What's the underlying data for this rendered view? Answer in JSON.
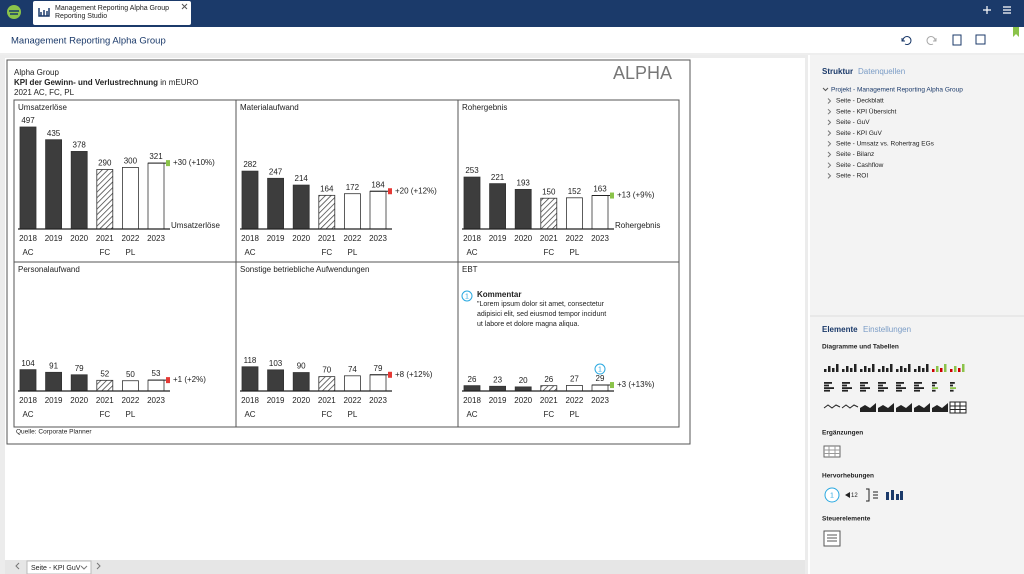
{
  "app": {
    "tab_title": "Management Reporting Alpha Group",
    "tab_subtitle": "Reporting Studio",
    "page_title": "Management Reporting Alpha Group",
    "footer_tab": "Seite - KPI GuV"
  },
  "report": {
    "company": "Alpha Group",
    "title": "KPI der Gewinn- und Verlustrechnung",
    "unit": "in mEURO",
    "scenarios": "2021 AC, FC, PL",
    "logo": "ALPHA",
    "source": "Quelle: Corporate Planner",
    "comment": {
      "number": "1",
      "title": "Kommentar",
      "lines": [
        "\"Lorem ipsum dolor sit amet, consectetur",
        "adipisici elit, sed eiusmod tempor incidunt",
        "ut labore et dolore magna aliqua."
      ]
    }
  },
  "chart_data": [
    {
      "type": "bar",
      "title": "Umsatzerlöse",
      "categories": [
        "2018",
        "2019",
        "2020",
        "2021",
        "2022",
        "2023"
      ],
      "scenario_labels": [
        "AC",
        null,
        null,
        "FC",
        "PL",
        null
      ],
      "values": [
        497,
        435,
        378,
        290,
        300,
        321
      ],
      "bar_styles": [
        "solid",
        "solid",
        "solid",
        "hatched",
        "outline",
        "outline"
      ],
      "delta_label": "+30 (+10%)",
      "delta_color": "#8bc34a",
      "series_label": "Umsatzerlöse"
    },
    {
      "type": "bar",
      "title": "Materialaufwand",
      "categories": [
        "2018",
        "2019",
        "2020",
        "2021",
        "2022",
        "2023"
      ],
      "scenario_labels": [
        "AC",
        null,
        null,
        "FC",
        "PL",
        null
      ],
      "values": [
        282,
        247,
        214,
        164,
        172,
        184
      ],
      "bar_styles": [
        "solid",
        "solid",
        "solid",
        "hatched",
        "outline",
        "outline"
      ],
      "delta_label": "+20 (+12%)",
      "delta_color": "#e53935"
    },
    {
      "type": "bar",
      "title": "Rohergebnis",
      "categories": [
        "2018",
        "2019",
        "2020",
        "2021",
        "2022",
        "2023"
      ],
      "scenario_labels": [
        "AC",
        null,
        null,
        "FC",
        "PL",
        null
      ],
      "values": [
        253,
        221,
        193,
        150,
        152,
        163
      ],
      "bar_styles": [
        "solid",
        "solid",
        "solid",
        "hatched",
        "outline",
        "outline"
      ],
      "delta_label": "+13 (+9%)",
      "delta_color": "#8bc34a",
      "series_label": "Rohergebnis"
    },
    {
      "type": "bar",
      "title": "Personalaufwand",
      "categories": [
        "2018",
        "2019",
        "2020",
        "2021",
        "2022",
        "2023"
      ],
      "scenario_labels": [
        "AC",
        null,
        null,
        "FC",
        "PL",
        null
      ],
      "values": [
        104,
        91,
        79,
        52,
        50,
        53
      ],
      "bar_styles": [
        "solid",
        "solid",
        "solid",
        "hatched",
        "outline",
        "outline"
      ],
      "delta_label": "+1 (+2%)",
      "delta_color": "#e53935"
    },
    {
      "type": "bar",
      "title": "Sonstige betriebliche Aufwendungen",
      "categories": [
        "2018",
        "2019",
        "2020",
        "2021",
        "2022",
        "2023"
      ],
      "scenario_labels": [
        "AC",
        null,
        null,
        "FC",
        "PL",
        null
      ],
      "values": [
        118,
        103,
        90,
        70,
        74,
        79
      ],
      "bar_styles": [
        "solid",
        "solid",
        "solid",
        "hatched",
        "outline",
        "outline"
      ],
      "delta_label": "+8 (+12%)",
      "delta_color": "#e53935"
    },
    {
      "type": "bar",
      "title": "EBT",
      "categories": [
        "2018",
        "2019",
        "2020",
        "2021",
        "2022",
        "2023"
      ],
      "scenario_labels": [
        "AC",
        null,
        null,
        "FC",
        "PL",
        null
      ],
      "values": [
        26,
        23,
        20,
        26,
        27,
        29
      ],
      "bar_styles": [
        "solid",
        "solid",
        "solid",
        "hatched",
        "outline",
        "outline"
      ],
      "delta_label": "+3 (+13%)",
      "delta_color": "#8bc34a",
      "marker": "1"
    }
  ],
  "sidebar": {
    "tabs": [
      "Struktur",
      "Datenquellen"
    ],
    "tree_root": "Projekt - Management Reporting Alpha Group",
    "tree_items": [
      "Seite - Deckblatt",
      "Seite - KPI Übersicht",
      "Seite - GuV",
      "Seite - KPI GuV",
      "Seite - Umsatz vs. Rohertrag EGs",
      "Seite - Bilanz",
      "Seite - Cashflow",
      "Seite - ROI"
    ],
    "element_tabs": [
      "Elemente",
      "Einstellungen"
    ],
    "sections": [
      "Diagramme und Tabellen",
      "Ergänzungen",
      "Hervorhebungen",
      "Steuerelemente"
    ],
    "highlight_icon_texts": [
      "1",
      "12"
    ]
  }
}
